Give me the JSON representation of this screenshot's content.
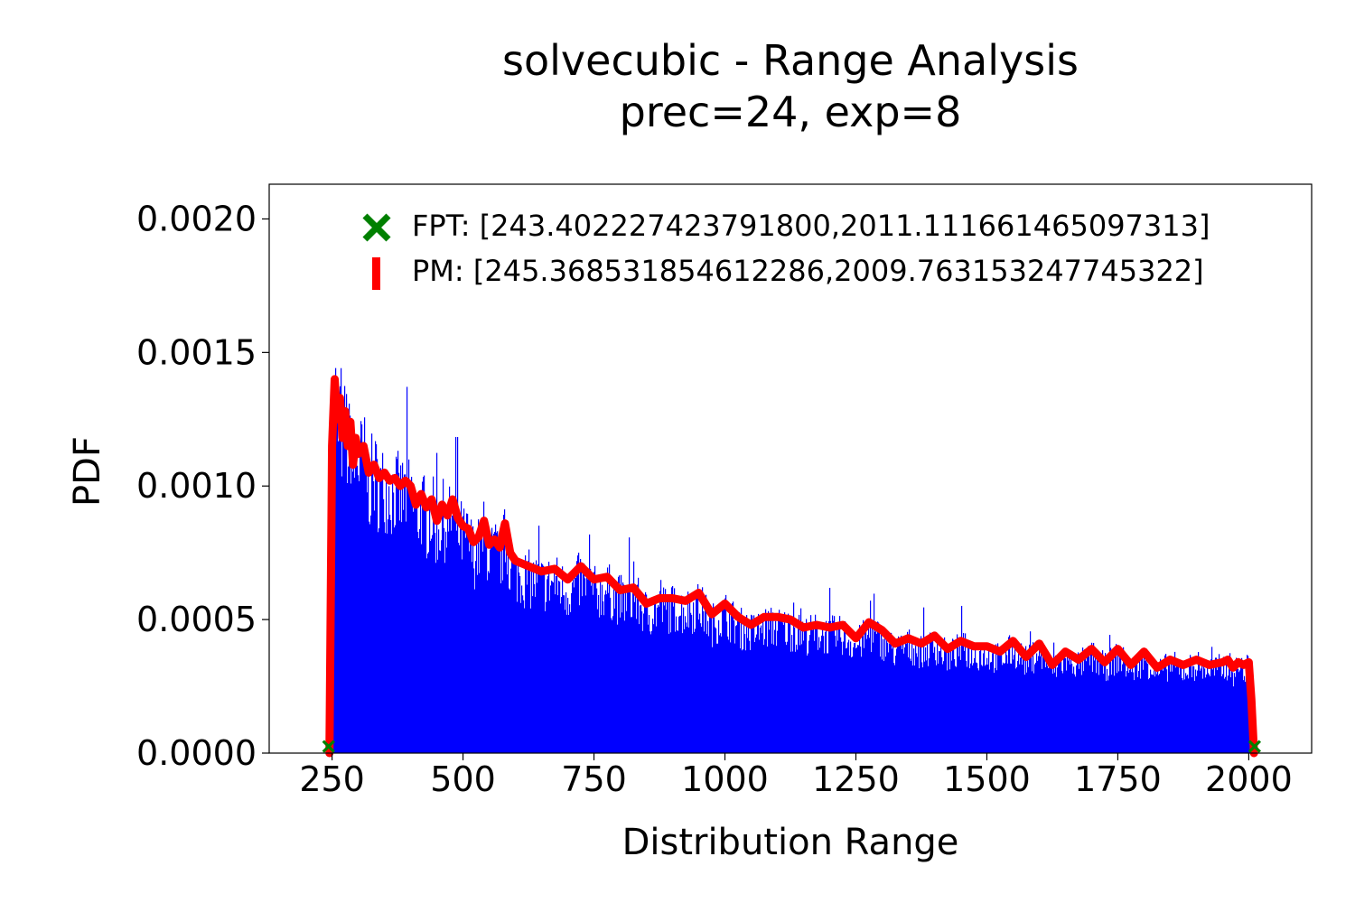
{
  "chart_data": {
    "type": "histogram",
    "title": "solvecubic - Range Analysis",
    "subtitle": "prec=24, exp=8",
    "xlabel": "Distribution Range",
    "ylabel": "PDF",
    "xlim": [
      130,
      2120
    ],
    "ylim": [
      0,
      0.00213
    ],
    "x_ticks": [
      250,
      500,
      750,
      1000,
      1250,
      1500,
      1750,
      2000
    ],
    "x_tick_labels": [
      "250",
      "500",
      "750",
      "1000",
      "1250",
      "1500",
      "1750",
      "2000"
    ],
    "y_ticks": [
      0,
      0.0005,
      0.001,
      0.0015,
      0.002
    ],
    "y_tick_labels": [
      "0.0000",
      "0.0005",
      "0.0010",
      "0.0015",
      "0.0020"
    ],
    "grid": false,
    "legend_position": "top-right",
    "colors": {
      "histogram": "#0000ff",
      "pm_curve": "#ff0000",
      "fpt_marker": "#008000"
    },
    "series": [
      {
        "name": "FPT: [243.402227423791800,2011.111661465097313]",
        "kind": "marker",
        "marker": "X",
        "x": [
          243.4022274237918,
          2011.1116614650973
        ],
        "y": [
          2.5e-05,
          2.5e-05
        ]
      },
      {
        "name": "PM: [245.368531854612286,2009.763153247745322]",
        "kind": "line",
        "x": [
          245,
          250,
          255,
          260,
          265,
          270,
          275,
          280,
          285,
          290,
          295,
          300,
          310,
          320,
          330,
          340,
          350,
          360,
          370,
          380,
          390,
          400,
          410,
          420,
          430,
          440,
          450,
          460,
          470,
          480,
          490,
          500,
          510,
          520,
          530,
          540,
          550,
          560,
          570,
          580,
          590,
          600,
          625,
          650,
          675,
          700,
          725,
          750,
          775,
          800,
          825,
          850,
          875,
          900,
          925,
          950,
          975,
          1000,
          1025,
          1050,
          1075,
          1100,
          1125,
          1150,
          1175,
          1200,
          1225,
          1250,
          1275,
          1300,
          1325,
          1350,
          1375,
          1400,
          1425,
          1450,
          1475,
          1500,
          1525,
          1550,
          1575,
          1600,
          1625,
          1650,
          1675,
          1700,
          1725,
          1750,
          1775,
          1800,
          1825,
          1850,
          1875,
          1900,
          1925,
          1950,
          1960,
          1970,
          1980,
          1990,
          2000,
          2005,
          2010
        ],
        "y": [
          0,
          0.00115,
          0.0014,
          0.00125,
          0.00133,
          0.00118,
          0.00128,
          0.00115,
          0.00124,
          0.00108,
          0.00118,
          0.00112,
          0.00115,
          0.00105,
          0.00108,
          0.00103,
          0.00105,
          0.00102,
          0.00103,
          0.001,
          0.00102,
          0.001,
          0.00093,
          0.00097,
          0.00092,
          0.00095,
          0.00087,
          0.00093,
          0.00089,
          0.00095,
          0.00088,
          0.00085,
          0.00084,
          0.00079,
          0.00081,
          0.00087,
          0.00078,
          0.0008,
          0.00077,
          0.00086,
          0.00075,
          0.00072,
          0.0007,
          0.00068,
          0.00069,
          0.00065,
          0.0007,
          0.00065,
          0.00066,
          0.00061,
          0.00062,
          0.00056,
          0.00058,
          0.00058,
          0.00057,
          0.0006,
          0.00052,
          0.00056,
          0.00051,
          0.00048,
          0.00051,
          0.00051,
          0.0005,
          0.00047,
          0.00048,
          0.00047,
          0.00048,
          0.00043,
          0.00049,
          0.00046,
          0.00041,
          0.00043,
          0.00041,
          0.00044,
          0.00039,
          0.00042,
          0.0004,
          0.0004,
          0.00038,
          0.00042,
          0.00036,
          0.00041,
          0.00033,
          0.00038,
          0.00035,
          0.00039,
          0.00034,
          0.00039,
          0.00033,
          0.00038,
          0.00032,
          0.00035,
          0.00033,
          0.00035,
          0.00033,
          0.00034,
          0.00035,
          0.00032,
          0.00034,
          0.00033,
          0.00034,
          0.0002,
          0
        ]
      },
      {
        "name": "",
        "kind": "histogram",
        "x": [
          250,
          255,
          260,
          265,
          270,
          275,
          280,
          285,
          290,
          295,
          300,
          310,
          320,
          330,
          340,
          350,
          360,
          370,
          380,
          390,
          400,
          410,
          420,
          430,
          440,
          450,
          460,
          470,
          480,
          490,
          500,
          510,
          520,
          530,
          540,
          550,
          560,
          570,
          580,
          590,
          600,
          625,
          650,
          675,
          700,
          725,
          750,
          775,
          800,
          825,
          850,
          875,
          900,
          925,
          950,
          975,
          1000,
          1025,
          1050,
          1075,
          1100,
          1125,
          1150,
          1175,
          1200,
          1225,
          1250,
          1275,
          1300,
          1325,
          1350,
          1375,
          1400,
          1425,
          1450,
          1475,
          1500,
          1525,
          1550,
          1575,
          1600,
          1625,
          1650,
          1675,
          1700,
          1725,
          1750,
          1775,
          1800,
          1825,
          1850,
          1875,
          1900,
          1925,
          1950,
          1960,
          1970,
          1980,
          1990,
          2000,
          2005
        ],
        "y": [
          0.00105,
          0.00135,
          0.0012,
          0.0013,
          0.00112,
          0.00125,
          0.0011,
          0.0012,
          0.00104,
          0.00114,
          0.00108,
          0.0011,
          0.001,
          0.00104,
          0.00098,
          0.001,
          0.00097,
          0.00098,
          0.00095,
          0.00097,
          0.00095,
          0.00088,
          0.00092,
          0.00087,
          0.0009,
          0.00082,
          0.00088,
          0.00084,
          0.0009,
          0.00083,
          0.0008,
          0.00079,
          0.00074,
          0.00076,
          0.00082,
          0.00073,
          0.00075,
          0.00072,
          0.0008,
          0.0007,
          0.00067,
          0.00065,
          0.00063,
          0.00064,
          0.0006,
          0.00065,
          0.0006,
          0.00061,
          0.00057,
          0.00058,
          0.00052,
          0.00054,
          0.00054,
          0.00053,
          0.00055,
          0.00048,
          0.00052,
          0.00047,
          0.00045,
          0.00047,
          0.00047,
          0.00046,
          0.00044,
          0.00045,
          0.00044,
          0.00044,
          0.0004,
          0.00045,
          0.00042,
          0.00038,
          0.0004,
          0.00038,
          0.0004,
          0.00036,
          0.00039,
          0.00037,
          0.00037,
          0.00035,
          0.00039,
          0.00034,
          0.00038,
          0.00031,
          0.00035,
          0.00033,
          0.00036,
          0.00032,
          0.00036,
          0.00031,
          0.00035,
          0.0003,
          0.00033,
          0.00031,
          0.00033,
          0.00031,
          0.00032,
          0.00033,
          0.0003,
          0.00032,
          0.00031,
          0.00032,
          0.00026
        ]
      }
    ]
  }
}
